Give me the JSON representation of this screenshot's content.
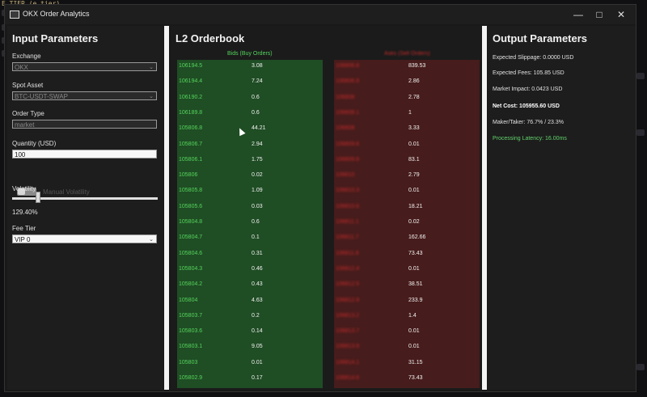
{
  "app": {
    "title": "OKX Order Analytics"
  },
  "background": {
    "snippet": "E_TIER (e tier)"
  },
  "input": {
    "heading": "Input Parameters",
    "exchange_label": "Exchange",
    "exchange_value": "OKX",
    "spot_label": "Spot Asset",
    "spot_value": "BTC-USDT-SWAP",
    "order_type_label": "Order Type",
    "order_type_value": "market",
    "quantity_label": "Quantity (USD)",
    "quantity_value": "100",
    "manual_vol_label": "Manual Volatility",
    "manual_vol_on": false,
    "volatility_label": "Volatility",
    "volatility_value": "129.40%",
    "volatility_level": 0.18,
    "fee_label": "Fee Tier",
    "fee_value": "VIP 0"
  },
  "orderbook": {
    "heading": "L2 Orderbook",
    "bids_label": "Bids (Buy Orders)",
    "asks_label": "Asks (Sell Orders)",
    "bids": [
      {
        "price": "106194.5",
        "qty": "3.08"
      },
      {
        "price": "106194.4",
        "qty": "7.24"
      },
      {
        "price": "106190.2",
        "qty": "0.6"
      },
      {
        "price": "106189.8",
        "qty": "0.6"
      },
      {
        "price": "105806.8",
        "qty": "44.21"
      },
      {
        "price": "105806.7",
        "qty": "2.94"
      },
      {
        "price": "105806.1",
        "qty": "1.75"
      },
      {
        "price": "105806",
        "qty": "0.02"
      },
      {
        "price": "105805.8",
        "qty": "1.09"
      },
      {
        "price": "105805.6",
        "qty": "0.03"
      },
      {
        "price": "105804.8",
        "qty": "0.6"
      },
      {
        "price": "105804.7",
        "qty": "0.1"
      },
      {
        "price": "105804.6",
        "qty": "0.31"
      },
      {
        "price": "105804.3",
        "qty": "0.46"
      },
      {
        "price": "105804.2",
        "qty": "0.43"
      },
      {
        "price": "105804",
        "qty": "4.63"
      },
      {
        "price": "105803.7",
        "qty": "0.2"
      },
      {
        "price": "105803.6",
        "qty": "0.14"
      },
      {
        "price": "105803.1",
        "qty": "9.05"
      },
      {
        "price": "105803",
        "qty": "0.01"
      },
      {
        "price": "105802.9",
        "qty": "0.17"
      }
    ],
    "asks": [
      {
        "price": "106806.8",
        "qty": "839.53"
      },
      {
        "price": "106806.9",
        "qty": "2.86"
      },
      {
        "price": "106808",
        "qty": "2.78"
      },
      {
        "price": "106808.1",
        "qty": "1"
      },
      {
        "price": "106808",
        "qty": "3.33"
      },
      {
        "price": "106809.6",
        "qty": "0.01"
      },
      {
        "price": "106809.8",
        "qty": "83.1"
      },
      {
        "price": "106810",
        "qty": "2.79"
      },
      {
        "price": "106810.3",
        "qty": "0.01"
      },
      {
        "price": "106810.6",
        "qty": "18.21"
      },
      {
        "price": "106811.1",
        "qty": "0.02"
      },
      {
        "price": "106811.7",
        "qty": "162.66"
      },
      {
        "price": "106811.8",
        "qty": "73.43"
      },
      {
        "price": "106812.4",
        "qty": "0.01"
      },
      {
        "price": "106812.5",
        "qty": "38.51"
      },
      {
        "price": "106812.9",
        "qty": "233.9"
      },
      {
        "price": "106813.2",
        "qty": "1.4"
      },
      {
        "price": "106813.7",
        "qty": "0.01"
      },
      {
        "price": "106813.9",
        "qty": "0.01"
      },
      {
        "price": "106814.1",
        "qty": "31.15"
      },
      {
        "price": "106814.6",
        "qty": "73.43"
      }
    ]
  },
  "output": {
    "heading": "Output Parameters",
    "slippage": "Expected Slippage: 0.0000 USD",
    "fees": "Expected Fees: 105.85 USD",
    "impact": "Market Impact: 0.0423 USD",
    "net_cost": "Net Cost: 105955.60 USD",
    "maker_taker": "Maker/Taker: 76.7% / 23.3%",
    "latency": "Processing Latency: 16.00ms"
  },
  "colors": {
    "bid": "#54d45c",
    "ask": "#c42a2a",
    "bids_bg": "#1f4d24",
    "asks_bg": "#471c1c"
  }
}
